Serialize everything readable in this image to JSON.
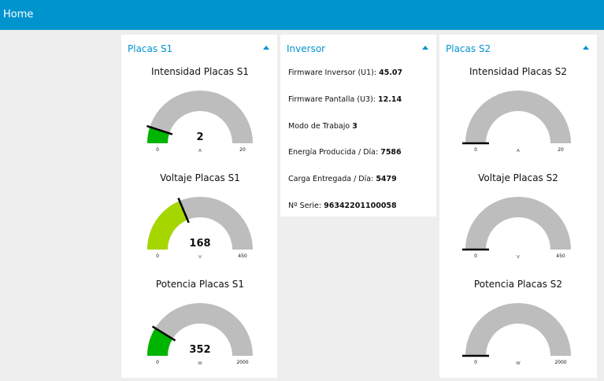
{
  "header": {
    "title": "Home"
  },
  "colors": {
    "accent": "#0094ce",
    "track": "#bdbdbd",
    "green": "#00b500",
    "yellowgreen": "#a6d600"
  },
  "panels": [
    {
      "title": "Placas S1",
      "gauges": [
        {
          "title": "Intensidad Placas S1",
          "value": "2",
          "num": 2,
          "unit": "A",
          "min": "0",
          "max": "20",
          "minNum": 0,
          "maxNum": 20,
          "color": "#00b500"
        },
        {
          "title": "Voltaje Placas S1",
          "value": "168",
          "num": 168,
          "unit": "V",
          "min": "0",
          "max": "450",
          "minNum": 0,
          "maxNum": 450,
          "color": "#a6d600"
        },
        {
          "title": "Potencia Placas S1",
          "value": "352",
          "num": 352,
          "unit": "W",
          "min": "0",
          "max": "2000",
          "minNum": 0,
          "maxNum": 2000,
          "color": "#00b500"
        }
      ]
    },
    {
      "title": "Inversor",
      "rows": [
        {
          "label": "Firmware Inversor (U1):",
          "value": "45.07"
        },
        {
          "label": "Firmware Pantalla (U3):",
          "value": "12.14"
        },
        {
          "label": "Modo de Trabajo",
          "value": "3"
        },
        {
          "label": "Energía Producida / Día:",
          "value": "7586"
        },
        {
          "label": "Carga Entregada / Día:",
          "value": "5479"
        },
        {
          "label": "Nº Serie:",
          "value": "96342201100058"
        }
      ]
    },
    {
      "title": "Placas S2",
      "gauges": [
        {
          "title": "Intensidad Placas S2",
          "value": "",
          "num": 0,
          "unit": "A",
          "min": "0",
          "max": "20",
          "minNum": 0,
          "maxNum": 20,
          "color": "#00b500"
        },
        {
          "title": "Voltaje Placas S2",
          "value": "",
          "num": 0,
          "unit": "V",
          "min": "0",
          "max": "450",
          "minNum": 0,
          "maxNum": 450,
          "color": "#00b500"
        },
        {
          "title": "Potencia Placas S2",
          "value": "",
          "num": 0,
          "unit": "W",
          "min": "0",
          "max": "2000",
          "minNum": 0,
          "maxNum": 2000,
          "color": "#00b500"
        }
      ]
    }
  ]
}
